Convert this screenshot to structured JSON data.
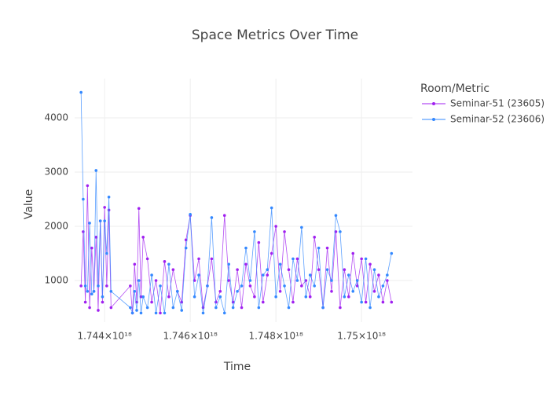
{
  "chart_data": {
    "type": "line",
    "title": "Space Metrics Over Time",
    "x_label": "Time",
    "y_label": "Value",
    "legend_title": "Room/Metric",
    "legend_position": "right",
    "grid": true,
    "xlim": [
      1.7433e+18,
      1.75119e+18
    ],
    "xticks": [
      {
        "value": 1.744e+18,
        "label": "1.744×10¹⁸"
      },
      {
        "value": 1.746e+18,
        "label": "1.746×10¹⁸"
      },
      {
        "value": 1.748e+18,
        "label": "1.748×10¹⁸"
      },
      {
        "value": 1.75e+18,
        "label": "1.75×10¹⁸"
      }
    ],
    "ylim": [
      232,
      4725
    ],
    "yticks": [
      1000,
      2000,
      3000,
      4000
    ],
    "series": [
      {
        "name": "Seminar-51 (23605)",
        "color": "#a020f0",
        "x": [
          1.74345e+18,
          1.7435e+18,
          1.74355e+18,
          1.7436e+18,
          1.74365e+18,
          1.7437e+18,
          1.74375e+18,
          1.7438e+18,
          1.74385e+18,
          1.7439e+18,
          1.74395e+18,
          1.744e+18,
          1.74405e+18,
          1.7441e+18,
          1.74415e+18,
          1.7446e+18,
          1.74465e+18,
          1.7447e+18,
          1.74475e+18,
          1.7448e+18,
          1.74485e+18,
          1.7449e+18,
          1.745e+18,
          1.7451e+18,
          1.7452e+18,
          1.7453e+18,
          1.7454e+18,
          1.7455e+18,
          1.7456e+18,
          1.7457e+18,
          1.7458e+18,
          1.7459e+18,
          1.746e+18,
          1.7461e+18,
          1.7462e+18,
          1.7463e+18,
          1.7464e+18,
          1.7465e+18,
          1.7466e+18,
          1.7467e+18,
          1.7468e+18,
          1.7469e+18,
          1.747e+18,
          1.7471e+18,
          1.7472e+18,
          1.7473e+18,
          1.7474e+18,
          1.7475e+18,
          1.7476e+18,
          1.7477e+18,
          1.7478e+18,
          1.7479e+18,
          1.748e+18,
          1.7481e+18,
          1.7482e+18,
          1.7483e+18,
          1.7484e+18,
          1.7485e+18,
          1.7486e+18,
          1.7487e+18,
          1.7488e+18,
          1.7489e+18,
          1.749e+18,
          1.7491e+18,
          1.7492e+18,
          1.7493e+18,
          1.7494e+18,
          1.7495e+18,
          1.7496e+18,
          1.7497e+18,
          1.7498e+18,
          1.7499e+18,
          1.75e+18,
          1.7501e+18,
          1.7502e+18,
          1.7503e+18,
          1.7504e+18,
          1.7505e+18,
          1.7506e+18,
          1.7507e+18
        ],
        "values": [
          900,
          1900,
          600,
          2750,
          500,
          1600,
          800,
          1800,
          450,
          2100,
          600,
          2350,
          900,
          2300,
          500,
          900,
          400,
          1300,
          600,
          2330,
          700,
          1800,
          1400,
          600,
          1000,
          400,
          1350,
          700,
          1200,
          800,
          600,
          1750,
          2200,
          1000,
          1400,
          500,
          900,
          1400,
          600,
          800,
          2200,
          1000,
          600,
          1200,
          500,
          1300,
          900,
          700,
          1700,
          600,
          1100,
          1500,
          2000,
          800,
          1900,
          1200,
          600,
          1400,
          900,
          1000,
          700,
          1800,
          1200,
          500,
          1600,
          800,
          1900,
          500,
          1200,
          700,
          1500,
          900,
          1400,
          600,
          1300,
          800,
          1100,
          600,
          1000,
          600
        ]
      },
      {
        "name": "Seminar-52 (23606)",
        "color": "#3388ff",
        "x": [
          1.74345e+18,
          1.7435e+18,
          1.74355e+18,
          1.7436e+18,
          1.74365e+18,
          1.7437e+18,
          1.74375e+18,
          1.7438e+18,
          1.74385e+18,
          1.7439e+18,
          1.74395e+18,
          1.744e+18,
          1.74405e+18,
          1.7441e+18,
          1.74415e+18,
          1.7446e+18,
          1.74465e+18,
          1.7447e+18,
          1.74475e+18,
          1.7448e+18,
          1.74485e+18,
          1.7449e+18,
          1.745e+18,
          1.7451e+18,
          1.7452e+18,
          1.7453e+18,
          1.7454e+18,
          1.7455e+18,
          1.7456e+18,
          1.7457e+18,
          1.7458e+18,
          1.7459e+18,
          1.746e+18,
          1.7461e+18,
          1.7462e+18,
          1.7463e+18,
          1.7464e+18,
          1.7465e+18,
          1.7466e+18,
          1.7467e+18,
          1.7468e+18,
          1.7469e+18,
          1.747e+18,
          1.7471e+18,
          1.7472e+18,
          1.7473e+18,
          1.7474e+18,
          1.7475e+18,
          1.7476e+18,
          1.7477e+18,
          1.7478e+18,
          1.7479e+18,
          1.748e+18,
          1.7481e+18,
          1.7482e+18,
          1.7483e+18,
          1.7484e+18,
          1.7485e+18,
          1.7486e+18,
          1.7487e+18,
          1.7488e+18,
          1.7489e+18,
          1.749e+18,
          1.7491e+18,
          1.7492e+18,
          1.7493e+18,
          1.7494e+18,
          1.7495e+18,
          1.7496e+18,
          1.7497e+18,
          1.7498e+18,
          1.7499e+18,
          1.75e+18,
          1.7501e+18,
          1.7502e+18,
          1.7503e+18,
          1.7504e+18,
          1.7505e+18,
          1.7506e+18,
          1.7507e+18
        ],
        "values": [
          4470,
          2500,
          900,
          800,
          2060,
          750,
          800,
          3030,
          900,
          2100,
          700,
          2100,
          1500,
          2540,
          800,
          500,
          400,
          800,
          450,
          1000,
          400,
          700,
          500,
          1100,
          400,
          900,
          400,
          1300,
          500,
          800,
          450,
          1600,
          2220,
          700,
          1100,
          400,
          900,
          2160,
          500,
          700,
          400,
          1300,
          500,
          800,
          900,
          1600,
          1000,
          1900,
          500,
          1100,
          1200,
          2340,
          700,
          1300,
          900,
          500,
          1400,
          1000,
          1980,
          700,
          1100,
          900,
          1600,
          500,
          1200,
          1000,
          2200,
          1900,
          700,
          1100,
          800,
          1000,
          600,
          1400,
          500,
          1200,
          700,
          900,
          1100,
          1500
        ]
      }
    ]
  }
}
